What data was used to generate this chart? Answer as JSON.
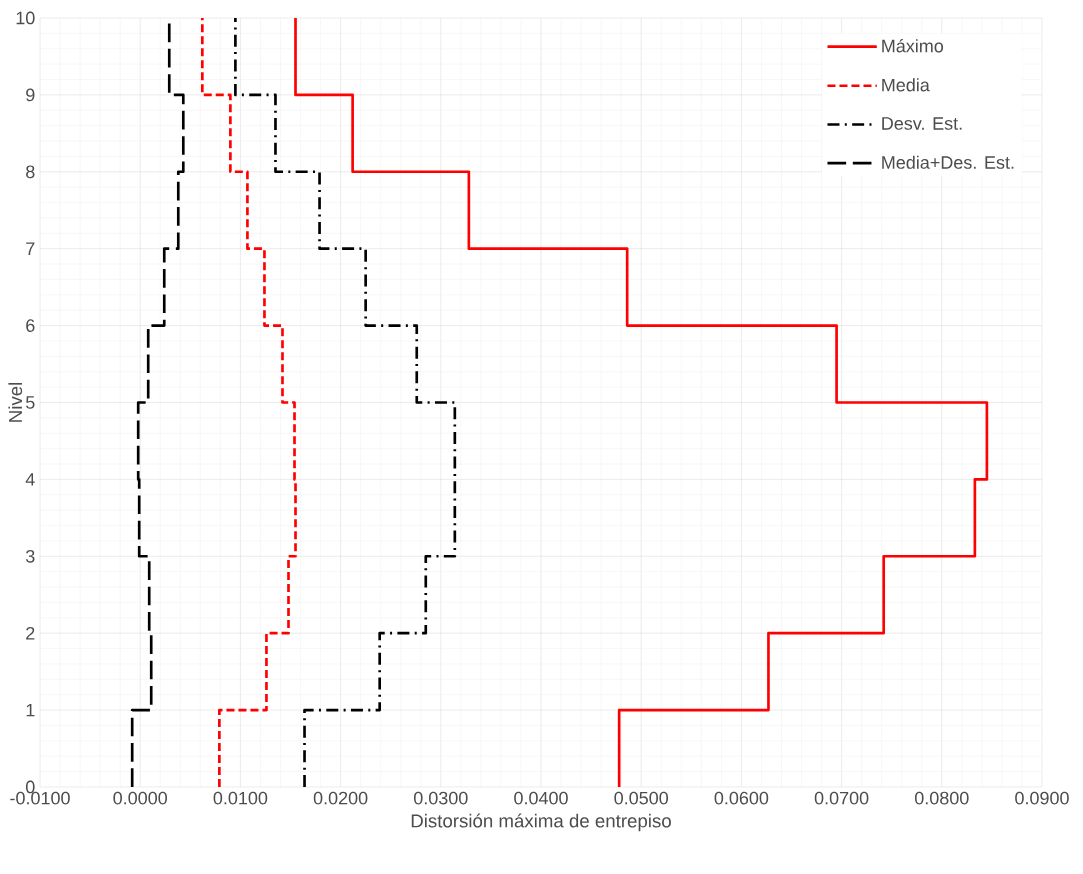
{
  "chart_data": {
    "type": "line",
    "xlabel": "Distorsión máxima de entrepiso",
    "ylabel": "Nivel",
    "xlim": [
      -0.01,
      0.09
    ],
    "xticks": [
      {
        "value": -0.01,
        "label": "-0.0100"
      },
      {
        "value": 0,
        "label": "0.0000"
      },
      {
        "value": 0.01,
        "label": "0.0100"
      },
      {
        "value": 0.02,
        "label": "0.0200"
      },
      {
        "value": 0.03,
        "label": "0.0300"
      },
      {
        "value": 0.04,
        "label": "0.0400"
      },
      {
        "value": 0.05,
        "label": "0.0500"
      },
      {
        "value": 0.06,
        "label": "0.0600"
      },
      {
        "value": 0.07,
        "label": "0.0700"
      },
      {
        "value": 0.08,
        "label": "0.0800"
      },
      {
        "value": 0.09,
        "label": "0.0900"
      }
    ],
    "ylim": [
      0,
      10
    ],
    "yticks": [
      0,
      1,
      2,
      3,
      4,
      5,
      6,
      7,
      8,
      9,
      10
    ],
    "grid": true,
    "legend": "top right",
    "marker": "none",
    "series": [
      {
        "name": "Máximo",
        "color": "#ff0000",
        "line_style": "solid",
        "x": [
          0.0478,
          0.0478,
          0.0627,
          0.0627,
          0.0742,
          0.0742,
          0.0833,
          0.0833,
          0.0845,
          0.0845,
          0.0695,
          0.0695,
          0.0486,
          0.0486,
          0.0328,
          0.0328,
          0.0212,
          0.0212,
          0.0155,
          0.0155
        ],
        "values": [
          0,
          1,
          1,
          2,
          2,
          3,
          3,
          4,
          4,
          5,
          5,
          6,
          6,
          7,
          7,
          8,
          8,
          9,
          9,
          10
        ]
      },
      {
        "name": "Media",
        "color": "#ff0000",
        "line_style": "dashed",
        "x": [
          0.0079,
          0.0079,
          0.0126,
          0.0126,
          0.0148,
          0.0148,
          0.0155,
          0.0155,
          0.0154,
          0.0154,
          0.0142,
          0.0142,
          0.0124,
          0.0124,
          0.0107,
          0.0107,
          0.009,
          0.009,
          0.0062,
          0.0062
        ],
        "values": [
          0,
          1,
          1,
          2,
          2,
          3,
          3,
          4,
          4,
          5,
          5,
          6,
          6,
          7,
          7,
          8,
          8,
          9,
          9,
          10
        ]
      },
      {
        "name": "Desv. Est.",
        "color": "#000000",
        "line_style": "dashdot",
        "x": [
          0.0164,
          0.0164,
          0.0239,
          0.0239,
          0.0285,
          0.0285,
          0.0314,
          0.0314,
          0.0276,
          0.0276,
          0.0225,
          0.0225,
          0.0179,
          0.0179,
          0.0135,
          0.0135,
          0.0095,
          0.0095
        ],
        "values": [
          0,
          1,
          1,
          2,
          2,
          3,
          3,
          5,
          5,
          6,
          6,
          7,
          7,
          8,
          8,
          9,
          9,
          10
        ]
      },
      {
        "name": "Media+Des. Est.",
        "color": "#000000",
        "line_style": "long dashed",
        "x": [
          -0.0008,
          -0.0008,
          0.0011,
          0.0011,
          0.0009,
          0.0009,
          -0.0001,
          -0.0001,
          -0.0002,
          -0.0002,
          0.0008,
          0.0008,
          0.0024,
          0.0024,
          0.0038,
          0.0038,
          0.0043,
          0.0043,
          0.0029,
          0.0029
        ],
        "values": [
          0,
          1,
          1,
          2,
          2,
          3,
          3,
          4,
          4,
          5,
          5,
          6,
          6,
          7,
          7,
          8,
          8,
          9,
          9,
          10
        ]
      }
    ]
  }
}
